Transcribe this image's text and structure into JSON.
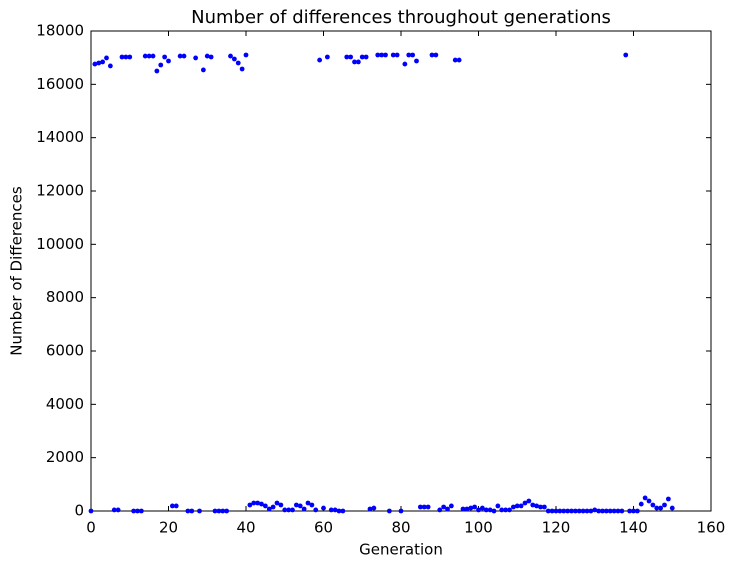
{
  "chart_data": {
    "type": "scatter",
    "title": "Number of differences throughout generations",
    "x_label": "Generation",
    "y_label": "Number of Differences",
    "color": "#0000ff",
    "x": [
      0,
      1,
      2,
      3,
      4,
      5,
      6,
      7,
      8,
      9,
      10,
      11,
      12,
      13,
      14,
      15,
      16,
      17,
      18,
      19,
      20,
      21,
      22,
      23,
      24,
      25,
      26,
      27,
      28,
      29,
      30,
      31,
      32,
      33,
      34,
      35,
      36,
      37,
      38,
      39,
      40,
      41,
      42,
      43,
      44,
      45,
      46,
      47,
      48,
      49,
      50,
      51,
      52,
      53,
      54,
      55,
      56,
      57,
      58,
      59,
      60,
      61,
      62,
      63,
      64,
      65,
      66,
      67,
      68,
      69,
      70,
      71,
      72,
      73,
      74,
      75,
      76,
      77,
      78,
      79,
      80,
      81,
      82,
      83,
      84,
      85,
      86,
      87,
      88,
      89,
      90,
      91,
      92,
      93,
      94,
      95,
      96,
      97,
      98,
      99,
      100,
      101,
      102,
      103,
      104,
      105,
      106,
      107,
      108,
      109,
      110,
      111,
      112,
      113,
      114,
      115,
      116,
      117,
      118,
      119,
      120,
      121,
      122,
      123,
      124,
      125,
      126,
      127,
      128,
      129,
      130,
      131,
      132,
      133,
      134,
      135,
      136,
      137,
      138,
      139,
      140,
      141,
      142,
      143,
      144,
      145,
      146,
      147,
      148,
      149,
      150
    ],
    "values": [
      0,
      16760,
      16800,
      16840,
      16990,
      16690,
      40,
      40,
      17025,
      17025,
      17025,
      0,
      0,
      0,
      17060,
      17060,
      17060,
      16500,
      16725,
      17025,
      16875,
      190,
      190,
      17060,
      17060,
      0,
      0,
      16990,
      0,
      16540,
      17060,
      17025,
      0,
      0,
      0,
      0,
      17060,
      16950,
      16800,
      16575,
      17100,
      225,
      300,
      300,
      260,
      190,
      75,
      150,
      300,
      225,
      40,
      40,
      40,
      225,
      190,
      75,
      300,
      225,
      40,
      16910,
      110,
      17025,
      40,
      40,
      0,
      0,
      17025,
      17025,
      16840,
      16840,
      17025,
      17025,
      75,
      110,
      17100,
      17100,
      17100,
      0,
      17100,
      17100,
      0,
      16760,
      17100,
      17100,
      16875,
      150,
      150,
      150,
      17100,
      17100,
      40,
      150,
      75,
      190,
      16910,
      16910,
      75,
      75,
      110,
      150,
      40,
      110,
      40,
      40,
      0,
      190,
      40,
      40,
      40,
      150,
      190,
      190,
      300,
      375,
      225,
      190,
      150,
      150,
      0,
      0,
      0,
      0,
      0,
      0,
      0,
      0,
      0,
      0,
      0,
      0,
      40,
      0,
      0,
      0,
      0,
      0,
      0,
      0,
      17100,
      0,
      0,
      0,
      260,
      490,
      375,
      225,
      110,
      110,
      225,
      450,
      110
    ],
    "xlim": [
      0,
      160
    ],
    "xticks": [
      0,
      20,
      40,
      60,
      80,
      100,
      120,
      140,
      160
    ],
    "ylim": [
      0,
      18000
    ],
    "yticks": [
      0,
      2000,
      4000,
      6000,
      8000,
      10000,
      12000,
      14000,
      16000,
      18000
    ]
  }
}
